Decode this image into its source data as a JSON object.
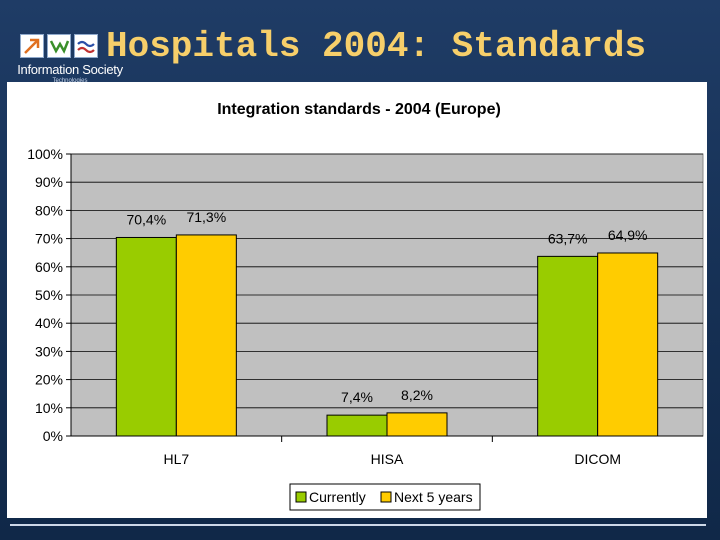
{
  "slide": {
    "title": "Hospitals 2004: Standards",
    "logo_text": "Information Society",
    "logo_subtext": "Technologies"
  },
  "colors": {
    "background": "#1a3760",
    "title": "#f7cf6a",
    "plot_area": "#c0c0c0",
    "currently": "#99cc00",
    "next5": "#ffcc00"
  },
  "chart_data": {
    "type": "bar",
    "title": "Integration standards - 2004 (Europe)",
    "categories": [
      "HL7",
      "HISA",
      "DICOM"
    ],
    "series": [
      {
        "name": "Currently",
        "color": "#99cc00",
        "values": [
          70.4,
          7.4,
          63.7
        ],
        "labels": [
          "70,4%",
          "7,4%",
          "63,7%"
        ]
      },
      {
        "name": "Next 5 years",
        "color": "#ffcc00",
        "values": [
          71.3,
          8.2,
          64.9
        ],
        "labels": [
          "71,3%",
          "8,2%",
          "64,9%"
        ]
      }
    ],
    "ylim": [
      0,
      100
    ],
    "yticks": [
      "0%",
      "10%",
      "20%",
      "30%",
      "40%",
      "50%",
      "60%",
      "70%",
      "80%",
      "90%",
      "100%"
    ],
    "grid": true,
    "legend": "bottom"
  }
}
